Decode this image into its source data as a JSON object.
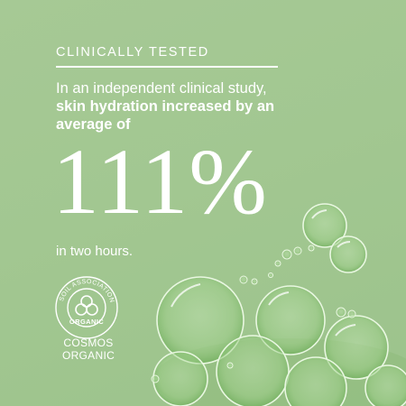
{
  "heading": "CLINICALLY TESTED",
  "intro": {
    "line1": "In an independent clinical study,",
    "bold_text": "skin hydration increased by an average of"
  },
  "stat": "111%",
  "caption": "in two hours.",
  "certification": {
    "seal_ring_text": "SOIL ASSOCIATION",
    "seal_core_text": "ORGANIC",
    "line1": "COSMOS",
    "line2": "ORGANIC"
  },
  "colors": {
    "background": "#a2c791",
    "text": "#ffffff",
    "bubble_tint": "#8fcf7e"
  }
}
